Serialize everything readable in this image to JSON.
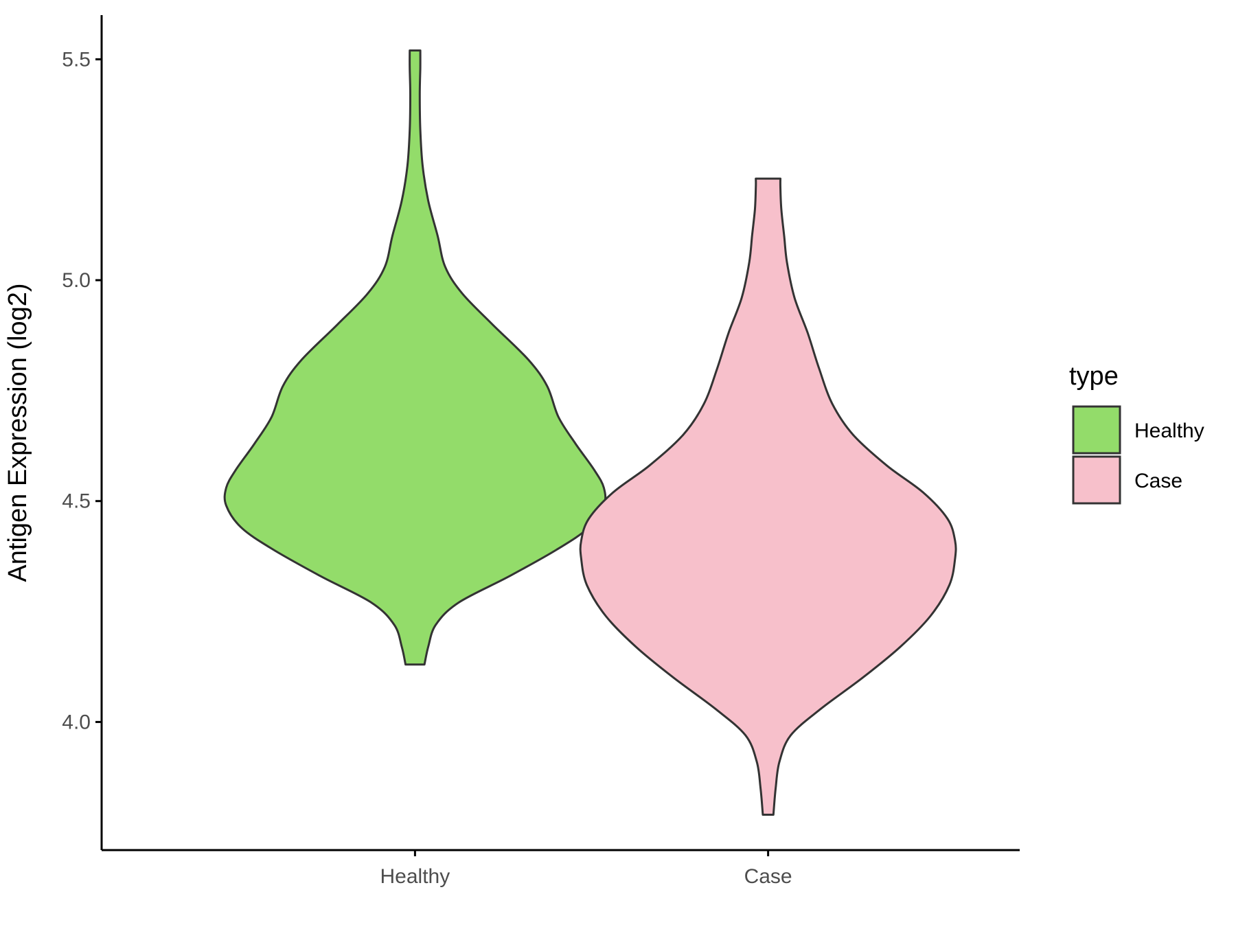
{
  "chart_data": {
    "type": "violin",
    "ylabel": "Antigen Expression (log2)",
    "xlabel": "",
    "ylim": [
      3.71,
      5.6
    ],
    "y_ticks": [
      {
        "value": 4.0,
        "label": "4.0"
      },
      {
        "value": 4.5,
        "label": "4.5"
      },
      {
        "value": 5.0,
        "label": "5.0"
      },
      {
        "value": 5.5,
        "label": "5.5"
      }
    ],
    "categories": [
      "Healthy",
      "Case"
    ],
    "series": [
      {
        "name": "Healthy",
        "color": "#93dc6a",
        "min": 4.13,
        "max": 5.52,
        "density": [
          {
            "y": 4.13,
            "w": 0.05
          },
          {
            "y": 4.17,
            "w": 0.07
          },
          {
            "y": 4.22,
            "w": 0.11
          },
          {
            "y": 4.27,
            "w": 0.23
          },
          {
            "y": 4.33,
            "w": 0.5
          },
          {
            "y": 4.39,
            "w": 0.75
          },
          {
            "y": 4.44,
            "w": 0.92
          },
          {
            "y": 4.49,
            "w": 1.0
          },
          {
            "y": 4.53,
            "w": 1.0
          },
          {
            "y": 4.57,
            "w": 0.95
          },
          {
            "y": 4.63,
            "w": 0.85
          },
          {
            "y": 4.69,
            "w": 0.76
          },
          {
            "y": 4.76,
            "w": 0.7
          },
          {
            "y": 4.82,
            "w": 0.6
          },
          {
            "y": 4.9,
            "w": 0.41
          },
          {
            "y": 4.97,
            "w": 0.25
          },
          {
            "y": 5.03,
            "w": 0.16
          },
          {
            "y": 5.1,
            "w": 0.12
          },
          {
            "y": 5.18,
            "w": 0.07
          },
          {
            "y": 5.26,
            "w": 0.04
          },
          {
            "y": 5.34,
            "w": 0.028
          },
          {
            "y": 5.42,
            "w": 0.025
          },
          {
            "y": 5.48,
            "w": 0.028
          },
          {
            "y": 5.52,
            "w": 0.028
          }
        ]
      },
      {
        "name": "Case",
        "color": "#f7c0cb",
        "min": 3.79,
        "max": 5.23,
        "density": [
          {
            "y": 3.79,
            "w": 0.028
          },
          {
            "y": 3.85,
            "w": 0.04
          },
          {
            "y": 3.91,
            "w": 0.06
          },
          {
            "y": 3.97,
            "w": 0.12
          },
          {
            "y": 4.03,
            "w": 0.28
          },
          {
            "y": 4.1,
            "w": 0.5
          },
          {
            "y": 4.17,
            "w": 0.7
          },
          {
            "y": 4.24,
            "w": 0.86
          },
          {
            "y": 4.31,
            "w": 0.96
          },
          {
            "y": 4.37,
            "w": 0.99
          },
          {
            "y": 4.41,
            "w": 0.99
          },
          {
            "y": 4.46,
            "w": 0.95
          },
          {
            "y": 4.52,
            "w": 0.82
          },
          {
            "y": 4.58,
            "w": 0.63
          },
          {
            "y": 4.65,
            "w": 0.45
          },
          {
            "y": 4.72,
            "w": 0.34
          },
          {
            "y": 4.8,
            "w": 0.27
          },
          {
            "y": 4.88,
            "w": 0.21
          },
          {
            "y": 4.96,
            "w": 0.14
          },
          {
            "y": 5.04,
            "w": 0.1
          },
          {
            "y": 5.1,
            "w": 0.085
          },
          {
            "y": 5.16,
            "w": 0.07
          },
          {
            "y": 5.21,
            "w": 0.065
          },
          {
            "y": 5.23,
            "w": 0.065
          }
        ]
      }
    ],
    "legend": {
      "title": "type",
      "position": "right",
      "items": [
        "Healthy",
        "Case"
      ]
    },
    "grid": false
  }
}
